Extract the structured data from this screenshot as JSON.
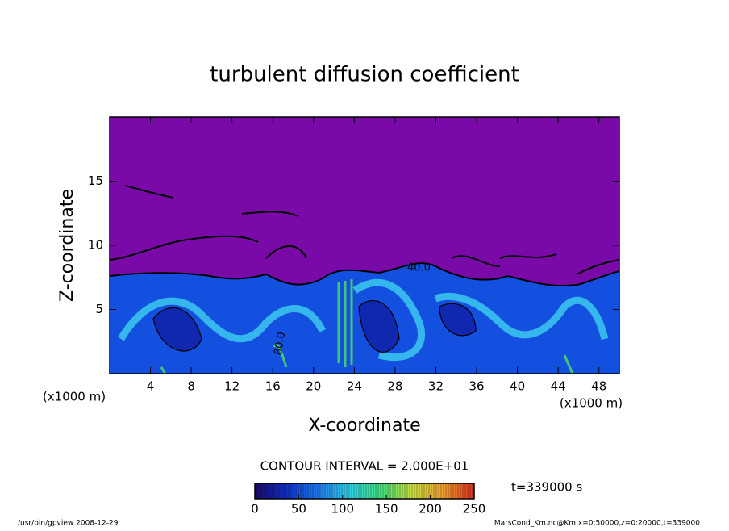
{
  "chart_data": {
    "type": "contour",
    "title": "turbulent diffusion coefficient",
    "x_label": "X-coordinate",
    "y_label": "Z-coordinate",
    "x_unit": "(x1000 m)",
    "y_unit": "(x1000 m)",
    "xlim": [
      0,
      50
    ],
    "ylim": [
      0,
      20
    ],
    "xticks": [
      4,
      8,
      12,
      16,
      20,
      24,
      28,
      32,
      36,
      40,
      44,
      48
    ],
    "yticks": [
      5,
      10,
      15
    ],
    "contour_labels": [
      "40.0",
      "80.0"
    ],
    "contour_interval_label": "CONTOUR INTERVAL = 2.000E+01",
    "time_label": "t=339000 s",
    "colorbar": {
      "lim": [
        0,
        250
      ],
      "ticks": [
        0,
        50,
        100,
        150,
        200,
        250
      ],
      "colors": [
        "#1a0a6a",
        "#1030c8",
        "#1e78f0",
        "#30d0e8",
        "#40e080",
        "#c8e040",
        "#f0a030",
        "#e03020"
      ]
    },
    "footer_left": "/usr/bin/gpview   2008-12-29",
    "footer_right": "MarsCond_Km.nc@Km,x=0:50000,z=0:20000,t=339000"
  }
}
